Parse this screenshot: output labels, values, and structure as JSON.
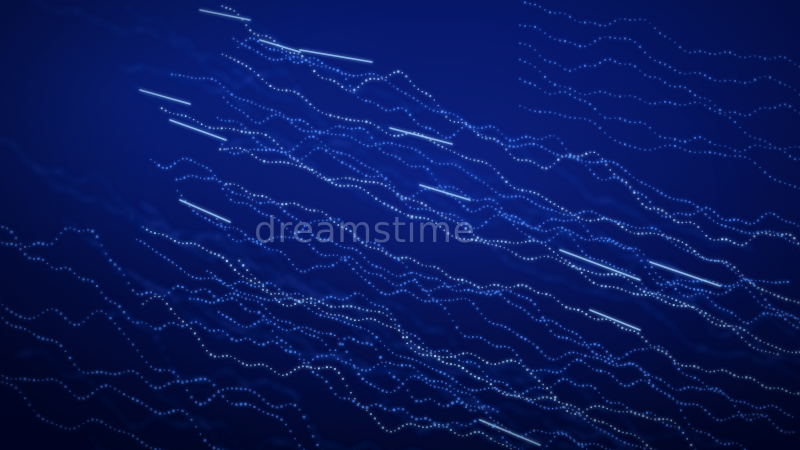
{
  "watermark": {
    "text": "dreamstime"
  },
  "colors": {
    "background_dark": "#020829",
    "background_mid": "#061a6e",
    "dot_bright": "#9fd4ff",
    "dot_mid": "#4a8cff",
    "dot_dim": "#2454d8"
  },
  "description_icon": "abstract-particle-waves"
}
